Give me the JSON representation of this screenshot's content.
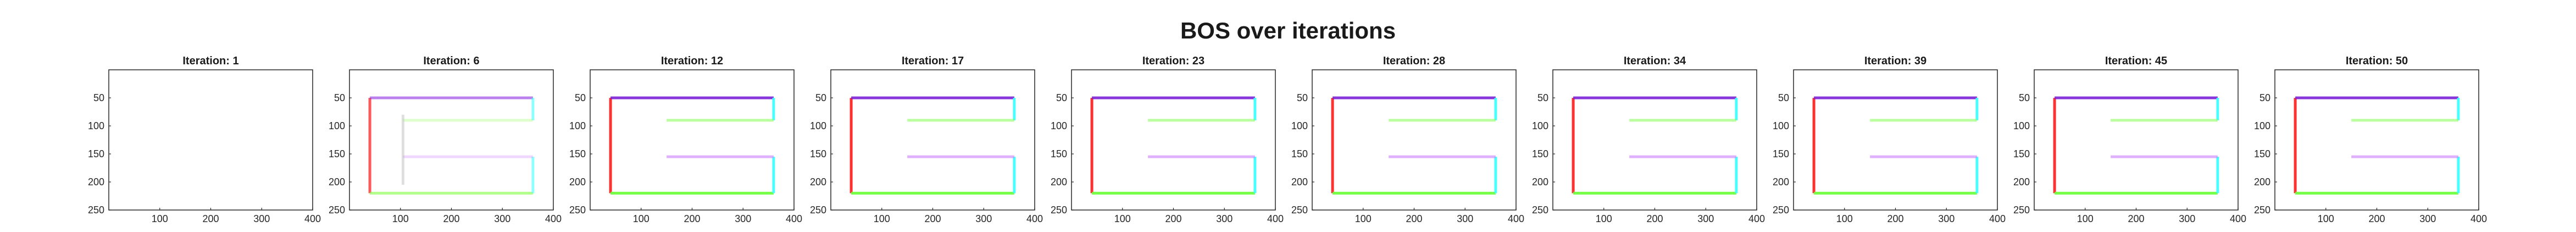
{
  "figure": {
    "title": "BOS over iterations"
  },
  "chart_data": [
    {
      "type": "heatmap",
      "title": "Iteration: 1",
      "xlim": [
        0,
        400
      ],
      "ylim": [
        250,
        0
      ],
      "xticks": [
        100,
        200,
        300,
        400
      ],
      "yticks": [
        50,
        100,
        150,
        200,
        250
      ],
      "state": "empty",
      "segments": []
    },
    {
      "type": "heatmap",
      "title": "Iteration: 6",
      "xlim": [
        0,
        400
      ],
      "ylim": [
        250,
        0
      ],
      "xticks": [
        100,
        200,
        300,
        400
      ],
      "yticks": [
        50,
        100,
        150,
        200,
        250
      ],
      "state": "partial",
      "segments": [
        {
          "x1": 40,
          "y1": 50,
          "x2": 40,
          "y2": 220,
          "color": "#ff2020",
          "opacity": 0.75
        },
        {
          "x1": 40,
          "y1": 50,
          "x2": 360,
          "y2": 50,
          "color": "#8a2be2",
          "opacity": 0.6
        },
        {
          "x1": 40,
          "y1": 220,
          "x2": 360,
          "y2": 220,
          "color": "#80ff40",
          "opacity": 0.6
        },
        {
          "x1": 360,
          "y1": 50,
          "x2": 360,
          "y2": 90,
          "color": "#40ffff",
          "opacity": 0.6
        },
        {
          "x1": 360,
          "y1": 155,
          "x2": 360,
          "y2": 220,
          "color": "#40ffff",
          "opacity": 0.6
        },
        {
          "x1": 105,
          "y1": 90,
          "x2": 360,
          "y2": 90,
          "color": "#a0ff70",
          "opacity": 0.35
        },
        {
          "x1": 105,
          "y1": 155,
          "x2": 360,
          "y2": 155,
          "color": "#d28cff",
          "opacity": 0.35
        },
        {
          "x1": 105,
          "y1": 80,
          "x2": 105,
          "y2": 205,
          "color": "#b0b0b0",
          "opacity": 0.4
        }
      ]
    },
    {
      "type": "heatmap",
      "title": "Iteration: 12",
      "xlim": [
        0,
        400
      ],
      "ylim": [
        250,
        0
      ],
      "xticks": [
        100,
        200,
        300,
        400
      ],
      "yticks": [
        50,
        100,
        150,
        200,
        250
      ],
      "state": "complete",
      "segments": []
    },
    {
      "type": "heatmap",
      "title": "Iteration: 17",
      "xlim": [
        0,
        400
      ],
      "ylim": [
        250,
        0
      ],
      "xticks": [
        100,
        200,
        300,
        400
      ],
      "yticks": [
        50,
        100,
        150,
        200,
        250
      ],
      "state": "complete",
      "segments": []
    },
    {
      "type": "heatmap",
      "title": "Iteration: 23",
      "xlim": [
        0,
        400
      ],
      "ylim": [
        250,
        0
      ],
      "xticks": [
        100,
        200,
        300,
        400
      ],
      "yticks": [
        50,
        100,
        150,
        200,
        250
      ],
      "state": "complete",
      "segments": []
    },
    {
      "type": "heatmap",
      "title": "Iteration: 28",
      "xlim": [
        0,
        400
      ],
      "ylim": [
        250,
        0
      ],
      "xticks": [
        100,
        200,
        300,
        400
      ],
      "yticks": [
        50,
        100,
        150,
        200,
        250
      ],
      "state": "complete",
      "segments": []
    },
    {
      "type": "heatmap",
      "title": "Iteration: 34",
      "xlim": [
        0,
        400
      ],
      "ylim": [
        250,
        0
      ],
      "xticks": [
        100,
        200,
        300,
        400
      ],
      "yticks": [
        50,
        100,
        150,
        200,
        250
      ],
      "state": "complete",
      "segments": []
    },
    {
      "type": "heatmap",
      "title": "Iteration: 39",
      "xlim": [
        0,
        400
      ],
      "ylim": [
        250,
        0
      ],
      "xticks": [
        100,
        200,
        300,
        400
      ],
      "yticks": [
        50,
        100,
        150,
        200,
        250
      ],
      "state": "complete",
      "segments": []
    },
    {
      "type": "heatmap",
      "title": "Iteration: 45",
      "xlim": [
        0,
        400
      ],
      "ylim": [
        250,
        0
      ],
      "xticks": [
        100,
        200,
        300,
        400
      ],
      "yticks": [
        50,
        100,
        150,
        200,
        250
      ],
      "state": "complete",
      "segments": []
    },
    {
      "type": "heatmap",
      "title": "Iteration: 50",
      "xlim": [
        0,
        400
      ],
      "ylim": [
        250,
        0
      ],
      "xticks": [
        100,
        200,
        300,
        400
      ],
      "yticks": [
        50,
        100,
        150,
        200,
        250
      ],
      "state": "complete",
      "segments": []
    }
  ],
  "complete_segments": [
    {
      "x1": 40,
      "y1": 50,
      "x2": 40,
      "y2": 220,
      "color": "#ff1a1a",
      "opacity": 0.9
    },
    {
      "x1": 40,
      "y1": 50,
      "x2": 360,
      "y2": 50,
      "color": "#7b1fd6",
      "opacity": 0.9
    },
    {
      "x1": 40,
      "y1": 220,
      "x2": 360,
      "y2": 220,
      "color": "#66ff33",
      "opacity": 0.9
    },
    {
      "x1": 360,
      "y1": 50,
      "x2": 360,
      "y2": 90,
      "color": "#33ffff",
      "opacity": 0.9
    },
    {
      "x1": 360,
      "y1": 155,
      "x2": 360,
      "y2": 220,
      "color": "#33ffff",
      "opacity": 0.9
    },
    {
      "x1": 150,
      "y1": 90,
      "x2": 360,
      "y2": 90,
      "color": "#90ff60",
      "opacity": 0.6
    },
    {
      "x1": 150,
      "y1": 155,
      "x2": 360,
      "y2": 155,
      "color": "#c97dff",
      "opacity": 0.6
    }
  ]
}
